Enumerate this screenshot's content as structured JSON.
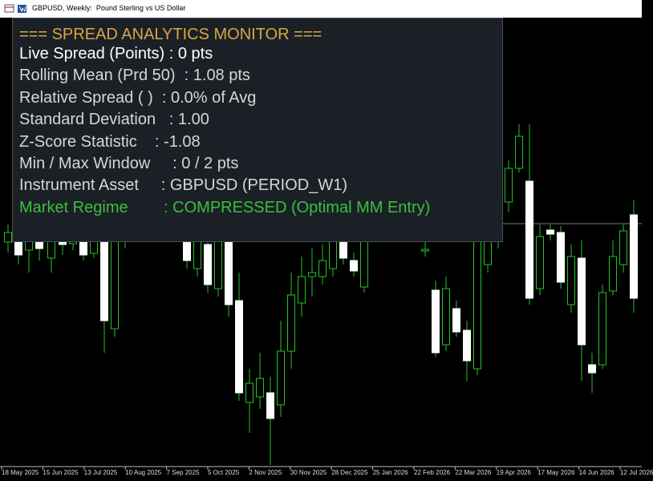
{
  "window": {
    "title": "GBPUSD, Weekly:  Pound Sterling vs US Dollar"
  },
  "panel": {
    "title": "=== SPREAD ANALYTICS MONITOR ===",
    "lines": [
      "Live Spread (Points) : 0 pts",
      "Rolling Mean (Prd 50)  : 1.08 pts",
      "Relative Spread ( )  : 0.0% of Avg",
      "Standard Deviation   : 1.00",
      "Z-Score Statistic    : -1.08",
      "Min / Max Window     : 0 / 2 pts",
      "Instrument Asset     : GBPUSD (PERIOD_W1)"
    ],
    "regime": "Market Regime        : COMPRESSED (Optimal MM Entry)"
  },
  "time_axis": {
    "labels": [
      "18 May 2025",
      "15 Jun 2025",
      "13 Jul 2025",
      "10 Aug 2025",
      "7 Sep 2025",
      "5 Oct 2025",
      "2 Nov 2025",
      "30 Nov 2025",
      "28 Dec 2025",
      "25 Jan 2026",
      "22 Feb 2026",
      "22 Mar 2026",
      "19 Apr 2026",
      "17 May 2026",
      "14 Jun 2026",
      "12 Jul 2026"
    ]
  }
}
